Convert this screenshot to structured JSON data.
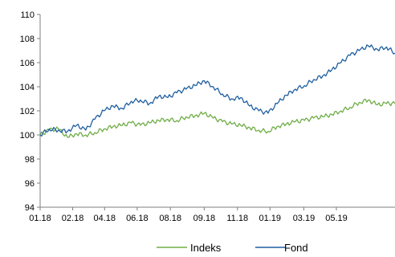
{
  "chart_data": {
    "type": "line",
    "title": "",
    "xlabel": "",
    "ylabel": "",
    "ylim": [
      94,
      110
    ],
    "yticks": [
      94,
      96,
      98,
      100,
      102,
      104,
      106,
      108,
      110
    ],
    "xlim": [
      "2018-01-01",
      "2019-06-30"
    ],
    "xticks": [
      {
        "label": "01.18",
        "date": "2018-01-01"
      },
      {
        "label": "02.18",
        "date": "2018-02-20"
      },
      {
        "label": "04.18",
        "date": "2018-04-10"
      },
      {
        "label": "06.18",
        "date": "2018-05-30"
      },
      {
        "label": "08.18",
        "date": "2018-07-20"
      },
      {
        "label": "09.18",
        "date": "2018-09-10"
      },
      {
        "label": "11.18",
        "date": "2018-10-31"
      },
      {
        "label": "01.19",
        "date": "2018-12-20"
      },
      {
        "label": "03.19",
        "date": "2019-02-10"
      },
      {
        "label": "05.19",
        "date": "2019-04-01"
      }
    ],
    "grid": false,
    "legend_position": "bottom",
    "series": [
      {
        "name": "Indeks",
        "color": "#70ad47",
        "points": [
          [
            "2018-01-01",
            100.0
          ],
          [
            "2018-01-15",
            100.4
          ],
          [
            "2018-01-29",
            100.5
          ],
          [
            "2018-02-12",
            99.8
          ],
          [
            "2018-02-26",
            100.1
          ],
          [
            "2018-03-12",
            100.0
          ],
          [
            "2018-03-26",
            100.2
          ],
          [
            "2018-04-09",
            100.5
          ],
          [
            "2018-04-23",
            100.7
          ],
          [
            "2018-05-07",
            100.8
          ],
          [
            "2018-05-21",
            101.0
          ],
          [
            "2018-06-04",
            100.8
          ],
          [
            "2018-06-18",
            101.0
          ],
          [
            "2018-07-02",
            101.2
          ],
          [
            "2018-07-16",
            101.3
          ],
          [
            "2018-07-30",
            101.2
          ],
          [
            "2018-08-13",
            101.5
          ],
          [
            "2018-08-27",
            101.6
          ],
          [
            "2018-09-10",
            101.8
          ],
          [
            "2018-09-24",
            101.4
          ],
          [
            "2018-10-08",
            101.1
          ],
          [
            "2018-10-22",
            100.9
          ],
          [
            "2018-11-05",
            100.8
          ],
          [
            "2018-11-19",
            100.6
          ],
          [
            "2018-12-03",
            100.4
          ],
          [
            "2018-12-17",
            100.3
          ],
          [
            "2018-12-31",
            100.7
          ],
          [
            "2019-01-14",
            100.9
          ],
          [
            "2019-01-28",
            101.1
          ],
          [
            "2019-02-11",
            101.2
          ],
          [
            "2019-02-25",
            101.4
          ],
          [
            "2019-03-11",
            101.5
          ],
          [
            "2019-03-25",
            101.7
          ],
          [
            "2019-04-08",
            102.0
          ],
          [
            "2019-04-22",
            102.3
          ],
          [
            "2019-05-06",
            102.7
          ],
          [
            "2019-05-20",
            102.9
          ],
          [
            "2019-06-03",
            102.5
          ],
          [
            "2019-06-17",
            102.6
          ],
          [
            "2019-06-30",
            102.6
          ]
        ]
      },
      {
        "name": "Fond",
        "color": "#1f5fa0",
        "points": [
          [
            "2018-01-01",
            100.0
          ],
          [
            "2018-01-15",
            100.5
          ],
          [
            "2018-01-29",
            100.4
          ],
          [
            "2018-02-12",
            100.3
          ],
          [
            "2018-02-26",
            100.8
          ],
          [
            "2018-03-12",
            100.4
          ],
          [
            "2018-03-26",
            101.3
          ],
          [
            "2018-04-09",
            102.0
          ],
          [
            "2018-04-23",
            102.4
          ],
          [
            "2018-05-07",
            102.2
          ],
          [
            "2018-05-21",
            102.8
          ],
          [
            "2018-06-04",
            102.9
          ],
          [
            "2018-06-18",
            102.6
          ],
          [
            "2018-07-02",
            103.2
          ],
          [
            "2018-07-16",
            103.1
          ],
          [
            "2018-07-30",
            103.5
          ],
          [
            "2018-08-13",
            103.8
          ],
          [
            "2018-08-27",
            104.1
          ],
          [
            "2018-09-10",
            104.5
          ],
          [
            "2018-09-24",
            104.0
          ],
          [
            "2018-10-08",
            103.4
          ],
          [
            "2018-10-22",
            103.0
          ],
          [
            "2018-11-05",
            103.1
          ],
          [
            "2018-11-19",
            102.4
          ],
          [
            "2018-12-03",
            102.0
          ],
          [
            "2018-12-17",
            101.8
          ],
          [
            "2018-12-31",
            102.6
          ],
          [
            "2019-01-14",
            103.3
          ],
          [
            "2019-01-28",
            103.8
          ],
          [
            "2019-02-11",
            104.1
          ],
          [
            "2019-02-25",
            104.6
          ],
          [
            "2019-03-11",
            104.9
          ],
          [
            "2019-03-25",
            105.4
          ],
          [
            "2019-04-08",
            106.0
          ],
          [
            "2019-04-22",
            106.6
          ],
          [
            "2019-05-06",
            107.0
          ],
          [
            "2019-05-20",
            107.4
          ],
          [
            "2019-06-03",
            107.1
          ],
          [
            "2019-06-17",
            107.3
          ],
          [
            "2019-06-30",
            106.8
          ]
        ]
      }
    ]
  }
}
